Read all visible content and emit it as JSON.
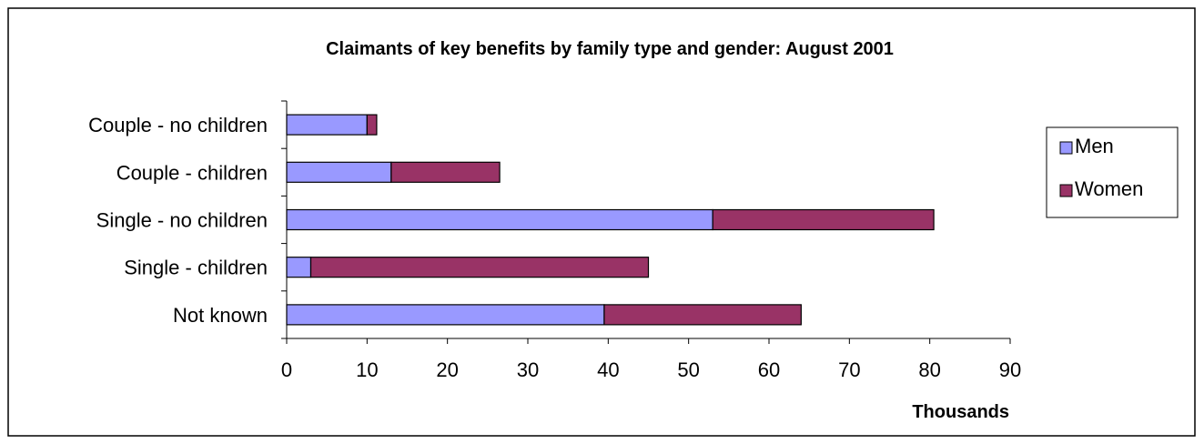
{
  "chart_data": {
    "type": "bar",
    "orientation": "horizontal",
    "stacked": true,
    "title": "Claimants of key benefits by family type and gender: August 2001",
    "xlabel": "Thousands",
    "ylabel": "",
    "categories": [
      "Couple - no children",
      "Couple - children",
      "Single - no children",
      "Single - children",
      "Not known"
    ],
    "series": [
      {
        "name": "Men",
        "color": "#9999ff",
        "values": [
          10,
          13,
          53,
          3,
          39.5
        ]
      },
      {
        "name": "Women",
        "color": "#993366",
        "values": [
          1.2,
          13.5,
          27.5,
          42,
          24.5
        ]
      }
    ],
    "xlim": [
      0,
      90
    ],
    "xticks": [
      0,
      10,
      20,
      30,
      40,
      50,
      60,
      70,
      80,
      90
    ],
    "grid": false,
    "legend": "right"
  }
}
